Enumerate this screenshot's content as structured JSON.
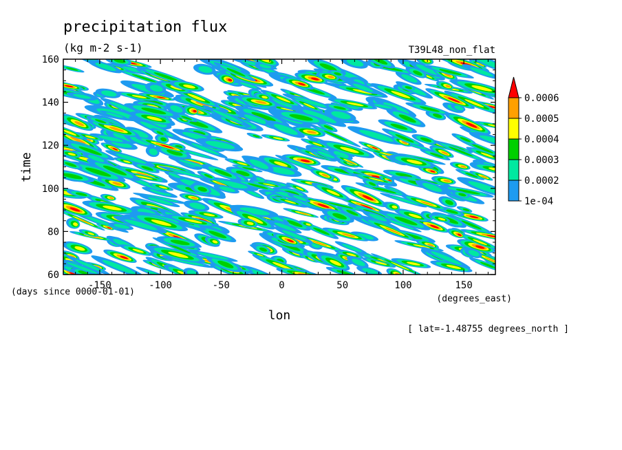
{
  "chart_data": {
    "type": "heatmap",
    "title": "precipitation flux",
    "subtitle": "(kg m-2 s-1)",
    "run_label": "T39L48_non_flat",
    "xlabel": "lon",
    "x_units": "(degrees_east)",
    "ylabel": "time",
    "y_units": "(days since 0000-01-01)",
    "footnote": "[ lat=-1.48755 degrees_north ]",
    "xlim": [
      -180,
      176
    ],
    "ylim": [
      60,
      160
    ],
    "x_ticks": [
      -150,
      -100,
      -50,
      0,
      50,
      100,
      150
    ],
    "x_tick_labels": [
      "-150",
      "-100",
      "-50",
      "0",
      "50",
      "100",
      "150"
    ],
    "y_ticks": [
      60,
      80,
      100,
      120,
      140,
      160
    ],
    "y_tick_labels": [
      "60",
      "80",
      "100",
      "120",
      "140",
      "160"
    ],
    "colorbar": {
      "levels": [
        0.0001,
        0.0002,
        0.0003,
        0.0004,
        0.0005,
        0.0006
      ],
      "level_labels": [
        "1e-04",
        "0.0002",
        "0.0003",
        "0.0004",
        "0.0005",
        "0.0006"
      ],
      "colors": [
        "#1e9bf0",
        "#00e8a0",
        "#00d000",
        "#ffff00",
        "#ffa000",
        "#ff0000"
      ],
      "extend": "max"
    },
    "grid": false,
    "legend_position": "right"
  }
}
